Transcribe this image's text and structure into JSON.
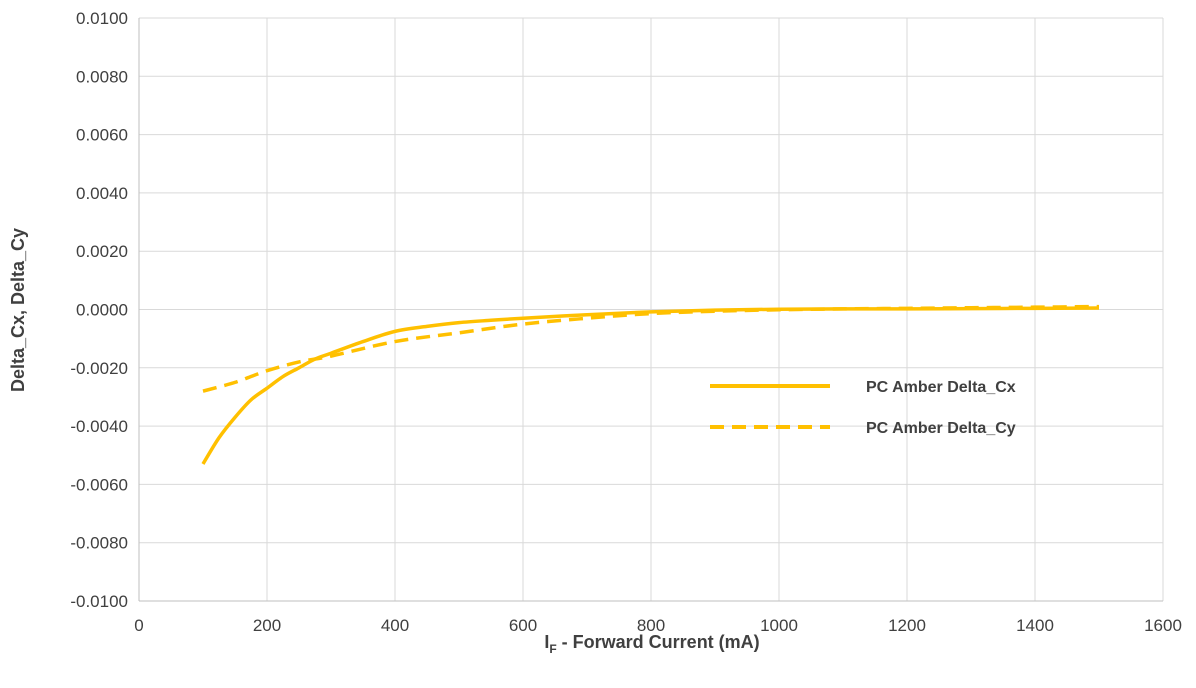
{
  "chart_data": {
    "type": "line",
    "xlabel_main": "I",
    "xlabel_sub": "F",
    "xlabel_rest": " - Forward Current (mA)",
    "ylabel": "Delta_Cx, Delta_Cy",
    "xlim": [
      0,
      1600
    ],
    "ylim": [
      -0.01,
      0.01
    ],
    "x_ticks": [
      0,
      200,
      400,
      600,
      800,
      1000,
      1200,
      1400,
      1600
    ],
    "x_tick_labels": [
      "0",
      "200",
      "400",
      "600",
      "800",
      "1000",
      "1200",
      "1400",
      "1600"
    ],
    "y_ticks": [
      -0.01,
      -0.008,
      -0.006,
      -0.004,
      -0.002,
      0,
      0.002,
      0.004,
      0.006,
      0.008,
      0.01
    ],
    "y_tick_labels": [
      "-0.0100",
      "-0.0080",
      "-0.0060",
      "-0.0040",
      "-0.0020",
      "0.0000",
      "0.0020",
      "0.0040",
      "0.0060",
      "0.0080",
      "0.0100"
    ],
    "grid": true,
    "legend_position": "right",
    "series": [
      {
        "name": "PC Amber Delta_Cx",
        "style": "solid",
        "color": "#FFC000",
        "x": [
          100,
          125,
          150,
          175,
          200,
          225,
          250,
          275,
          300,
          350,
          400,
          450,
          500,
          550,
          600,
          700,
          800,
          900,
          1000,
          1100,
          1200,
          1300,
          1400,
          1500
        ],
        "y": [
          -0.0053,
          -0.0044,
          -0.0037,
          -0.0031,
          -0.0027,
          -0.0023,
          -0.002,
          -0.0017,
          -0.0015,
          -0.0011,
          -0.00075,
          -0.00058,
          -0.00045,
          -0.00037,
          -0.0003,
          -0.00018,
          -8e-05,
          -2e-05,
          1e-05,
          2e-05,
          2e-05,
          3e-05,
          4e-05,
          5e-05
        ]
      },
      {
        "name": "PC Amber Delta_Cy",
        "style": "dashed",
        "color": "#FFC000",
        "x": [
          100,
          150,
          200,
          250,
          300,
          400,
          500,
          600,
          700,
          800,
          900,
          1000,
          1100,
          1200,
          1300,
          1400,
          1500
        ],
        "y": [
          -0.0028,
          -0.0025,
          -0.0021,
          -0.0018,
          -0.0016,
          -0.0011,
          -0.0008,
          -0.0005,
          -0.0003,
          -0.00014,
          -6e-05,
          -1e-05,
          2e-05,
          4e-05,
          6e-05,
          8e-05,
          0.0001
        ]
      }
    ]
  }
}
